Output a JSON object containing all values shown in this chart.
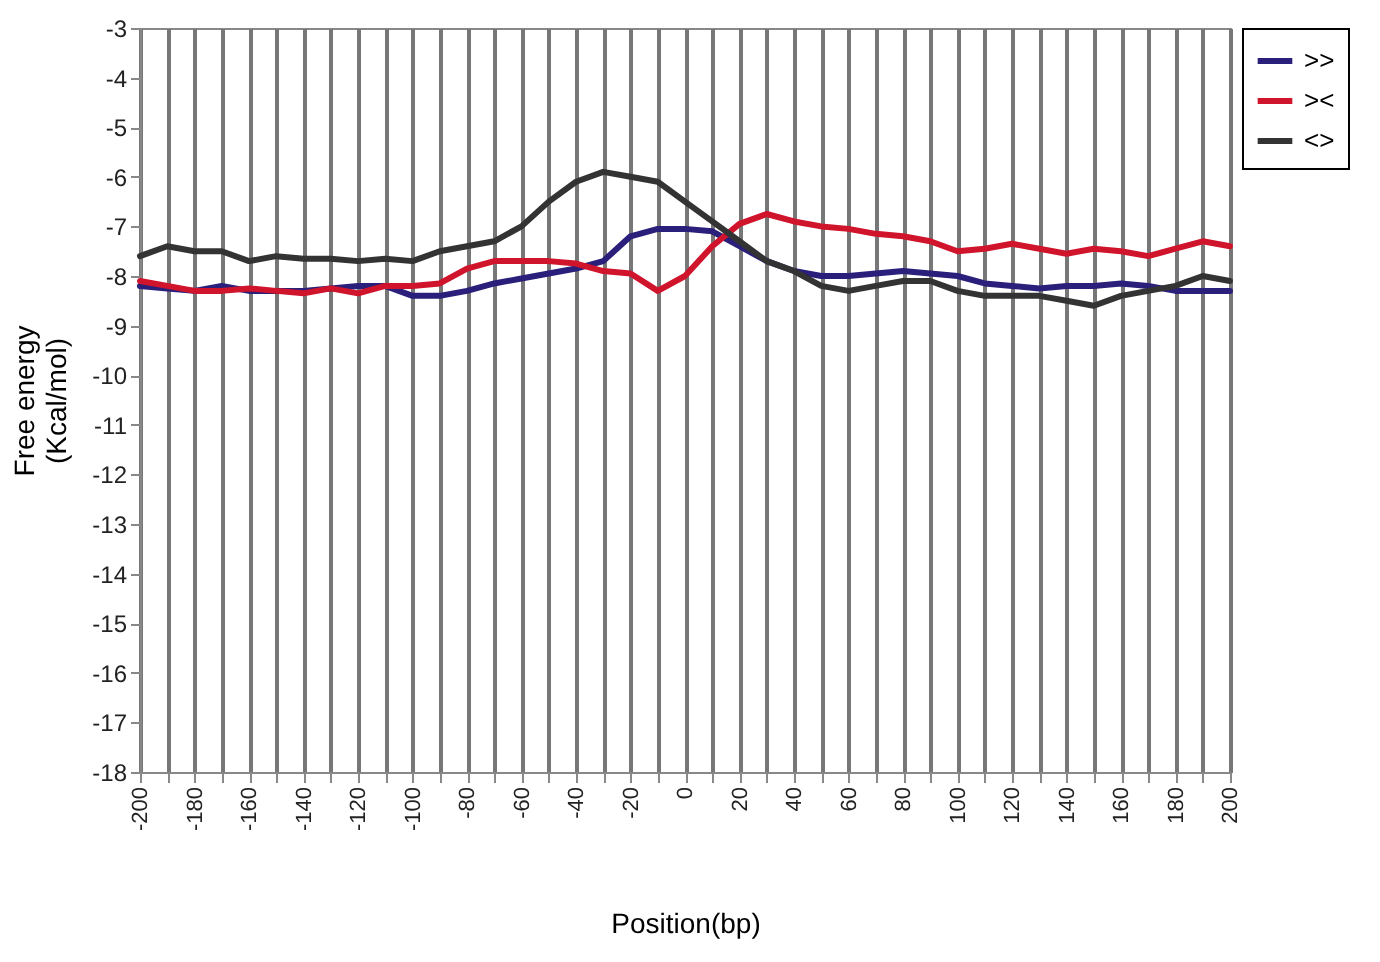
{
  "chart_data": {
    "type": "line",
    "xlabel": "Position(bp)",
    "ylabel": "Free energy\n(Kcal/mol)",
    "x": [
      -200,
      -190,
      -180,
      -170,
      -160,
      -150,
      -140,
      -130,
      -120,
      -110,
      -100,
      -90,
      -80,
      -70,
      -60,
      -50,
      -40,
      -30,
      -20,
      -10,
      0,
      10,
      20,
      30,
      40,
      50,
      60,
      70,
      80,
      90,
      100,
      110,
      120,
      130,
      140,
      150,
      160,
      170,
      180,
      190,
      200
    ],
    "series": [
      {
        "name": ">>",
        "color": "#2a1f7a",
        "values": [
          -8.2,
          -8.25,
          -8.3,
          -8.2,
          -8.3,
          -8.3,
          -8.3,
          -8.25,
          -8.2,
          -8.2,
          -8.4,
          -8.4,
          -8.3,
          -8.15,
          -8.05,
          -7.95,
          -7.85,
          -7.7,
          -7.2,
          -7.05,
          -7.05,
          -7.1,
          -7.4,
          -7.7,
          -7.9,
          -8.0,
          -8.0,
          -7.95,
          -7.9,
          -7.95,
          -8.0,
          -8.15,
          -8.2,
          -8.25,
          -8.2,
          -8.2,
          -8.15,
          -8.2,
          -8.3,
          -8.3,
          -8.3
        ]
      },
      {
        "name": "><",
        "color": "#d0142c",
        "values": [
          -8.1,
          -8.2,
          -8.3,
          -8.3,
          -8.25,
          -8.3,
          -8.35,
          -8.25,
          -8.35,
          -8.2,
          -8.2,
          -8.15,
          -7.85,
          -7.7,
          -7.7,
          -7.7,
          -7.75,
          -7.9,
          -7.95,
          -8.3,
          -8.0,
          -7.4,
          -6.95,
          -6.75,
          -6.9,
          -7.0,
          -7.05,
          -7.15,
          -7.2,
          -7.3,
          -7.5,
          -7.45,
          -7.35,
          -7.45,
          -7.55,
          -7.45,
          -7.5,
          -7.6,
          -7.45,
          -7.3,
          -7.4
        ]
      },
      {
        "name": "<>",
        "color": "#333333",
        "values": [
          -7.6,
          -7.4,
          -7.5,
          -7.5,
          -7.7,
          -7.6,
          -7.65,
          -7.65,
          -7.7,
          -7.65,
          -7.7,
          -7.5,
          -7.4,
          -7.3,
          -7.0,
          -6.5,
          -6.1,
          -5.9,
          -6.0,
          -6.1,
          -6.5,
          -6.9,
          -7.3,
          -7.7,
          -7.9,
          -8.2,
          -8.3,
          -8.2,
          -8.1,
          -8.1,
          -8.3,
          -8.4,
          -8.4,
          -8.4,
          -8.5,
          -8.6,
          -8.4,
          -8.3,
          -8.2,
          -8.0,
          -8.1
        ]
      }
    ],
    "xlim": [
      -200,
      200
    ],
    "xticks": [
      -200,
      {
        "value": -190,
        "label": null
      },
      -180,
      {
        "value": -170,
        "label": null
      },
      -160,
      {
        "value": -150,
        "label": null
      },
      -140,
      {
        "value": -130,
        "label": null
      },
      -120,
      {
        "value": -110,
        "label": null
      },
      -100,
      {
        "value": -90,
        "label": null
      },
      -80,
      {
        "value": -70,
        "label": null
      },
      -60,
      {
        "value": -50,
        "label": null
      },
      -40,
      {
        "value": -30,
        "label": null
      },
      -20,
      {
        "value": -10,
        "label": null
      },
      0,
      {
        "value": 10,
        "label": null
      },
      20,
      {
        "value": 30,
        "label": null
      },
      40,
      {
        "value": 50,
        "label": null
      },
      60,
      {
        "value": 70,
        "label": null
      },
      80,
      {
        "value": 90,
        "label": null
      },
      100,
      {
        "value": 110,
        "label": null
      },
      120,
      {
        "value": 130,
        "label": null
      },
      140,
      {
        "value": 150,
        "label": null
      },
      160,
      {
        "value": 170,
        "label": null
      },
      180,
      {
        "value": 190,
        "label": null
      },
      200
    ],
    "ylim": [
      -18,
      -3
    ],
    "yticks": [
      -18,
      -17,
      -16,
      -15,
      -14,
      -13,
      -12,
      -11,
      -10,
      -9,
      -8,
      -7,
      -6,
      -5,
      -4,
      -3
    ],
    "grid": "x",
    "legend": "right",
    "marker": "none",
    "line_style": "solid"
  }
}
